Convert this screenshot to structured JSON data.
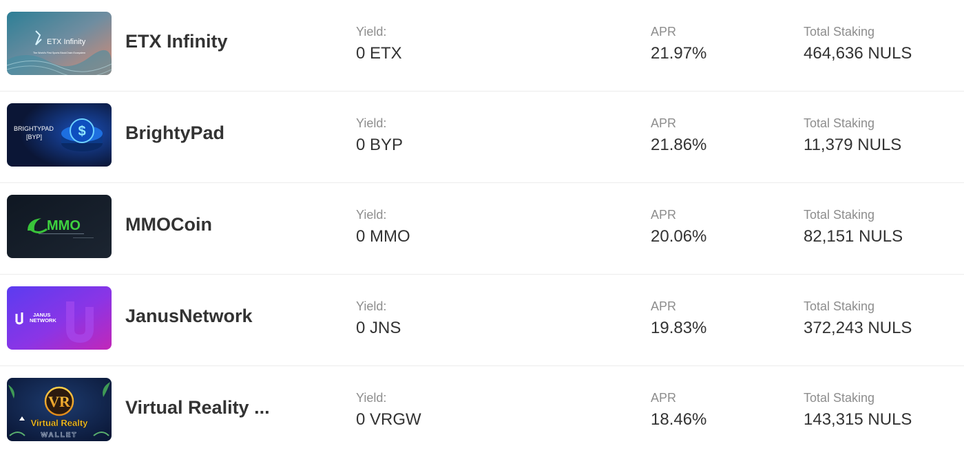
{
  "labels": {
    "yield": "Yield:",
    "apr": "APR",
    "total": "Total Staking"
  },
  "rows": [
    {
      "name": "ETX Infinity",
      "yield": "0 ETX",
      "apr": "21.97%",
      "total": "464,636 NULS",
      "thumb": {
        "title": "ETX Infinity",
        "caption": "The World's First Sports BlockChain Ecosystem"
      }
    },
    {
      "name": "BrightyPad",
      "yield": "0 BYP",
      "apr": "21.86%",
      "total": "11,379 NULS",
      "thumb": {
        "title": "BRIGHTYPAD",
        "sub": "[BYP]"
      }
    },
    {
      "name": "MMOCoin",
      "yield": "0 MMO",
      "apr": "20.06%",
      "total": "82,151 NULS",
      "thumb": {
        "title": "MMO"
      }
    },
    {
      "name": "JanusNetwork",
      "yield": "0 JNS",
      "apr": "19.83%",
      "total": "372,243 NULS",
      "thumb": {
        "title": "JANUS",
        "sub": "NETWORK"
      }
    },
    {
      "name": "Virtual Reality ...",
      "yield": "0 VRGW",
      "apr": "18.46%",
      "total": "143,315 NULS",
      "thumb": {
        "title": "Virtual Realty",
        "sub": "WALLET"
      }
    }
  ],
  "colors": {
    "text": "#333333",
    "muted": "#8d8d8d",
    "divider": "#ececec"
  }
}
